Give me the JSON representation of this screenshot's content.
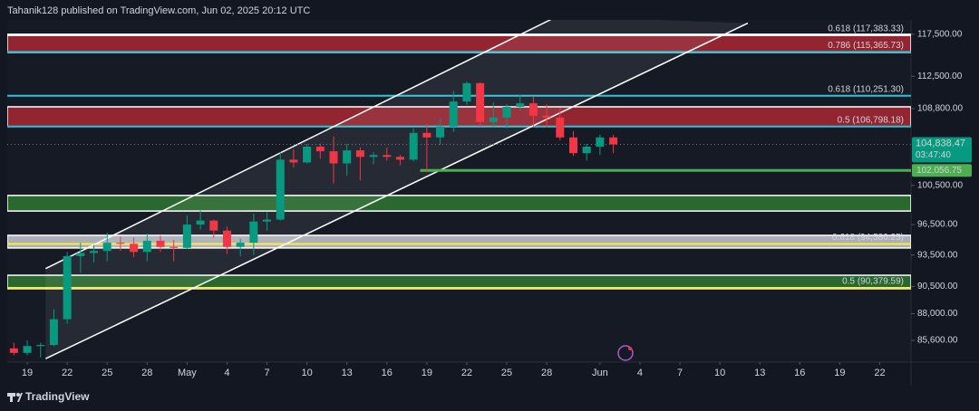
{
  "header": "Tahanik128 published on TradingView.com, Jun 02, 2025 20:12 UTC",
  "footer": "TradingView",
  "chart_data": {
    "type": "candlestick",
    "log_scale": true,
    "ylim": [
      83700,
      120600
    ],
    "xlim": [
      -0.5,
      67.35
    ],
    "yticks": [
      {
        "value": 117500,
        "label": "117,500.00"
      },
      {
        "value": 112500,
        "label": "112,500.00"
      },
      {
        "value": 108800,
        "label": "108,800.00"
      },
      {
        "value": 100500,
        "label": "100,500.00"
      },
      {
        "value": 96500,
        "label": "96,500.00"
      },
      {
        "value": 93500,
        "label": "93,500.00"
      },
      {
        "value": 90500,
        "label": "90,500.00"
      },
      {
        "value": 88000,
        "label": "88,000.00"
      },
      {
        "value": 85600,
        "label": "85,600.00"
      }
    ],
    "xticks": [
      {
        "value": 1,
        "label": "19"
      },
      {
        "value": 4,
        "label": "22"
      },
      {
        "value": 7,
        "label": "25"
      },
      {
        "value": 10,
        "label": "28"
      },
      {
        "value": 13,
        "label": "May"
      },
      {
        "value": 16,
        "label": "4"
      },
      {
        "value": 19,
        "label": "7"
      },
      {
        "value": 22,
        "label": "10"
      },
      {
        "value": 25,
        "label": "13"
      },
      {
        "value": 28,
        "label": "16"
      },
      {
        "value": 31,
        "label": "19"
      },
      {
        "value": 34,
        "label": "22"
      },
      {
        "value": 37,
        "label": "25"
      },
      {
        "value": 40,
        "label": "28"
      },
      {
        "value": 44,
        "label": "Jun"
      },
      {
        "value": 47,
        "label": "4"
      },
      {
        "value": 50,
        "label": "7"
      },
      {
        "value": 53,
        "label": "10"
      },
      {
        "value": 56,
        "label": "13"
      },
      {
        "value": 59,
        "label": "16"
      },
      {
        "value": 62,
        "label": "19"
      },
      {
        "value": 65,
        "label": "22"
      }
    ],
    "x": [
      0,
      1,
      2,
      3,
      4,
      5,
      6,
      7,
      8,
      9,
      10,
      11,
      12,
      13,
      14,
      15,
      16,
      17,
      18,
      19,
      20,
      21,
      22,
      23,
      24,
      25,
      26,
      27,
      28,
      29,
      30,
      31,
      32,
      33,
      34,
      35,
      36,
      37,
      38,
      39,
      40,
      41,
      42,
      43,
      44,
      45
    ],
    "open": [
      84900,
      84500,
      85100,
      85200,
      87500,
      93400,
      93700,
      93900,
      94700,
      94600,
      93800,
      94900,
      94300,
      94200,
      96500,
      96900,
      95900,
      94300,
      94700,
      96800,
      97000,
      103200,
      102900,
      104600,
      104100,
      102800,
      104200,
      103500,
      103700,
      103500,
      103200,
      106100,
      105600,
      106800,
      109600,
      111700,
      107300,
      107800,
      109000,
      109400,
      108000,
      107800,
      105600,
      103900,
      104600,
      105600
    ],
    "high": [
      85400,
      85600,
      85400,
      88400,
      93800,
      94700,
      94500,
      95700,
      95300,
      95200,
      95600,
      95400,
      95000,
      97400,
      97900,
      97000,
      96300,
      95100,
      97600,
      97800,
      104000,
      104300,
      104900,
      104900,
      105700,
      104900,
      104500,
      104000,
      104500,
      103700,
      106600,
      107100,
      107700,
      110800,
      111900,
      111800,
      109500,
      109300,
      110400,
      110200,
      109300,
      108900,
      106300,
      104900,
      105900,
      105900
    ],
    "low": [
      84300,
      84300,
      84100,
      85100,
      87100,
      91800,
      92800,
      92900,
      93900,
      93300,
      92900,
      93800,
      92900,
      94100,
      96000,
      95200,
      93600,
      93400,
      93500,
      95900,
      96900,
      102400,
      102800,
      103300,
      100700,
      101500,
      101000,
      102700,
      103100,
      102600,
      103000,
      102000,
      104800,
      106200,
      109200,
      106800,
      106800,
      106600,
      108600,
      106800,
      106700,
      105300,
      103600,
      103100,
      103700,
      103900
    ],
    "close": [
      84500,
      85100,
      85200,
      87500,
      93400,
      93700,
      93900,
      94700,
      94600,
      93800,
      94900,
      94300,
      94200,
      96500,
      96900,
      95900,
      94300,
      94700,
      96800,
      97000,
      103200,
      102900,
      104600,
      104100,
      102800,
      104200,
      103500,
      103700,
      103500,
      103200,
      106100,
      105600,
      106800,
      109600,
      111700,
      107300,
      107800,
      109000,
      109400,
      108000,
      107800,
      105600,
      103900,
      104600,
      105600,
      104838.47
    ],
    "up_color": "#089981",
    "down_color": "#f23645",
    "last_price": {
      "value": 104838.47,
      "label": "104,838.47",
      "countdown": "03:47:40",
      "color": "#089981"
    },
    "support": {
      "value": 102056.75,
      "label": "102,056.75",
      "from": 30.5,
      "color": "#4caf50"
    },
    "zones": [
      {
        "low": 115300,
        "high": 117500,
        "color": "#b22833"
      },
      {
        "low": 106800,
        "high": 109000,
        "color": "#b22833"
      },
      {
        "low": 97860,
        "high": 99450,
        "color": "#2e7d32"
      },
      {
        "low": 94190,
        "high": 95430,
        "color": "#d1d4dc"
      },
      {
        "low": 90300,
        "high": 91570,
        "color": "#2e7d32"
      }
    ],
    "levels": [
      {
        "value": 117383.33,
        "label": "0.618 (117,383.33)",
        "color": "#f7525f",
        "line": "#ffffff"
      },
      {
        "value": 115365.73,
        "label": "0.786 (115,365.73)",
        "color": "#d9a0a8",
        "line": "#26c6da"
      },
      {
        "value": 110251.3,
        "label": "0.618 (110,251.30)",
        "color": "#26c6da",
        "line": "#26c6da"
      },
      {
        "value": 106798.18,
        "label": "0.5 (106,798.18)",
        "color": "#8fa0b8",
        "line": "#26c6da"
      },
      {
        "value": 94580.25,
        "label": "0.618 (94,580.25)",
        "color": "#ffeb3b",
        "line": "#ffeb3b"
      },
      {
        "value": 90379.59,
        "label": "0.5 (90,379.59)",
        "color": "#ffeb3b",
        "line": "#ffeb3b"
      }
    ],
    "channel": {
      "upper": [
        [
          2.38,
          92200
        ],
        [
          40.8,
          119700
        ]
      ],
      "lower": [
        [
          2.38,
          84000
        ],
        [
          55.1,
          118850
        ]
      ],
      "color": "#ffffff"
    }
  }
}
